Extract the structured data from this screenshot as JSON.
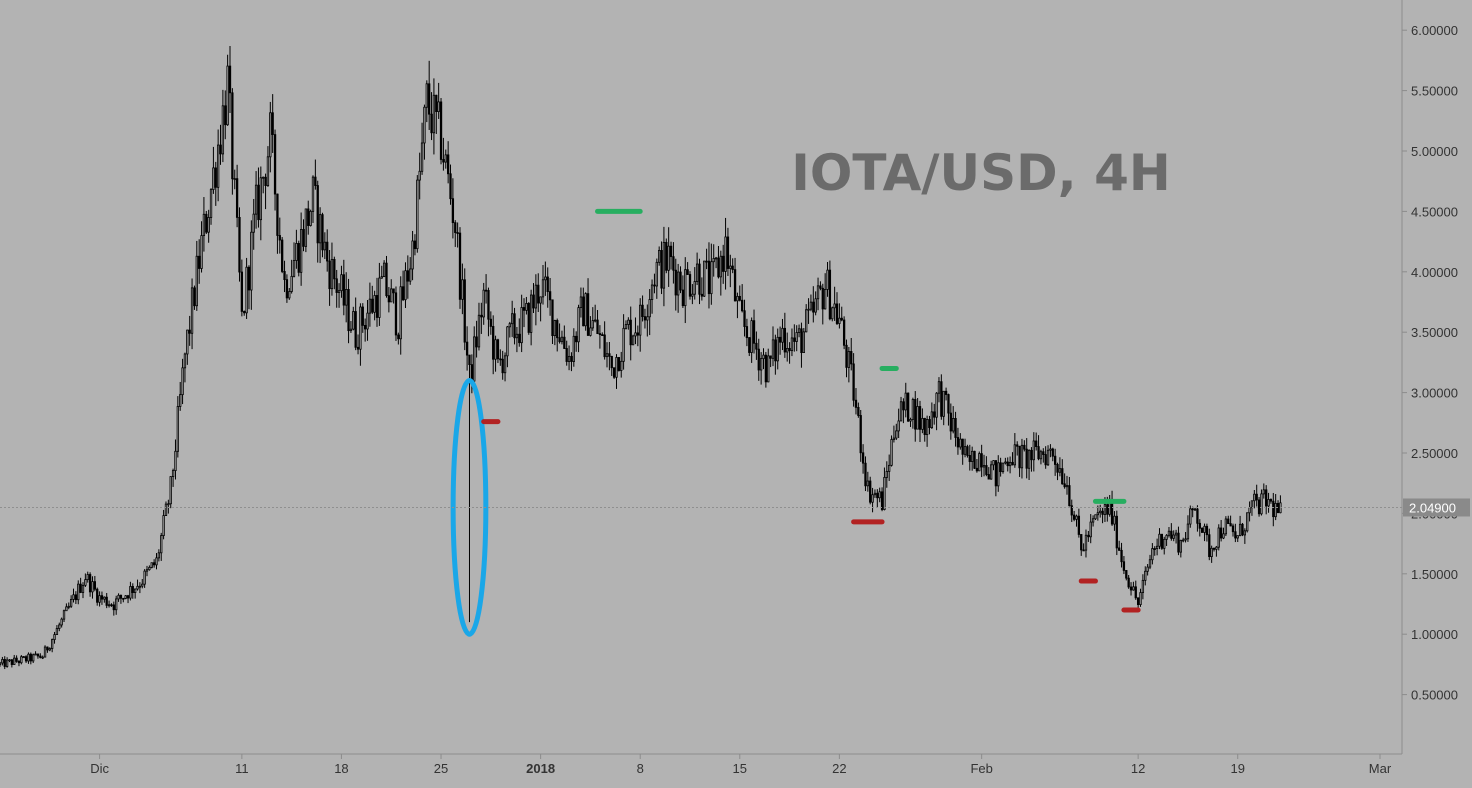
{
  "chart_data": {
    "type": "candlestick",
    "title": "IOTA/USD, 4H",
    "y_axis": {
      "ticks": [
        "6.00000",
        "5.50000",
        "5.00000",
        "4.50000",
        "4.00000",
        "3.50000",
        "3.00000",
        "2.50000",
        "2.00000",
        "1.50000",
        "1.00000",
        "0.50000"
      ],
      "tick_values": [
        6.0,
        5.5,
        5.0,
        4.5,
        4.0,
        3.5,
        3.0,
        2.5,
        2.0,
        1.5,
        1.0,
        0.5
      ],
      "range": [
        0.0,
        6.25
      ],
      "side": "right"
    },
    "x_axis": {
      "ticks": [
        {
          "label": "Dic",
          "date": "2017-12-01",
          "bold": false
        },
        {
          "label": "11",
          "date": "2017-12-11",
          "bold": false
        },
        {
          "label": "18",
          "date": "2017-12-18",
          "bold": false
        },
        {
          "label": "25",
          "date": "2017-12-25",
          "bold": false
        },
        {
          "label": "2018",
          "date": "2018-01-01",
          "bold": true
        },
        {
          "label": "8",
          "date": "2018-01-08",
          "bold": false
        },
        {
          "label": "15",
          "date": "2018-01-15",
          "bold": false
        },
        {
          "label": "22",
          "date": "2018-01-22",
          "bold": false
        },
        {
          "label": "Feb",
          "date": "2018-02-01",
          "bold": false
        },
        {
          "label": "12",
          "date": "2018-02-12",
          "bold": false
        },
        {
          "label": "19",
          "date": "2018-02-19",
          "bold": false
        },
        {
          "label": "Mar",
          "date": "2018-03-01",
          "bold": false
        }
      ],
      "range": [
        "2017-11-24",
        "2018-03-01"
      ]
    },
    "last_price": {
      "label": "2.04900",
      "value": 2.049
    },
    "price_path": [
      [
        "2017-11-24",
        0.75
      ],
      [
        "2017-11-27",
        0.82
      ],
      [
        "2017-11-29",
        1.25
      ],
      [
        "2017-11-30",
        1.48
      ],
      [
        "2017-12-01",
        1.3
      ],
      [
        "2017-12-02",
        1.25
      ],
      [
        "2017-12-04",
        1.45
      ],
      [
        "2017-12-05",
        1.6
      ],
      [
        "2017-12-06",
        2.2
      ],
      [
        "2017-12-07",
        3.3
      ],
      [
        "2017-12-08",
        4.1
      ],
      [
        "2017-12-09",
        4.8
      ],
      [
        "2017-12-10",
        5.55
      ],
      [
        "2017-12-11",
        3.6
      ],
      [
        "2017-12-12",
        4.5
      ],
      [
        "2017-12-13",
        5.1
      ],
      [
        "2017-12-14",
        3.9
      ],
      [
        "2017-12-15",
        4.2
      ],
      [
        "2017-12-16",
        4.6
      ],
      [
        "2017-12-17",
        4.1
      ],
      [
        "2017-12-18",
        3.8
      ],
      [
        "2017-12-19",
        3.5
      ],
      [
        "2017-12-20",
        3.7
      ],
      [
        "2017-12-21",
        3.9
      ],
      [
        "2017-12-22",
        3.6
      ],
      [
        "2017-12-23",
        4.2
      ],
      [
        "2017-12-24",
        5.4
      ],
      [
        "2017-12-25",
        5.1
      ],
      [
        "2017-12-26",
        4.4
      ],
      [
        "2017-12-27",
        3.1
      ],
      [
        "2017-12-28",
        3.8
      ],
      [
        "2017-12-29",
        3.2
      ],
      [
        "2017-12-30",
        3.5
      ],
      [
        "2017-12-31",
        3.6
      ],
      [
        "2018-01-01",
        3.9
      ],
      [
        "2018-01-02",
        3.6
      ],
      [
        "2018-01-03",
        3.3
      ],
      [
        "2018-01-04",
        3.7
      ],
      [
        "2018-01-05",
        3.5
      ],
      [
        "2018-01-06",
        3.2
      ],
      [
        "2018-01-07",
        3.5
      ],
      [
        "2018-01-08",
        3.6
      ],
      [
        "2018-01-09",
        4.0
      ],
      [
        "2018-01-10",
        4.1
      ],
      [
        "2018-01-11",
        3.9
      ],
      [
        "2018-01-12",
        4.0
      ],
      [
        "2018-01-13",
        3.9
      ],
      [
        "2018-01-14",
        4.2
      ],
      [
        "2018-01-15",
        3.6
      ],
      [
        "2018-01-16",
        3.4
      ],
      [
        "2018-01-17",
        3.2
      ],
      [
        "2018-01-18",
        3.5
      ],
      [
        "2018-01-19",
        3.4
      ],
      [
        "2018-01-20",
        3.6
      ],
      [
        "2018-01-21",
        3.9
      ],
      [
        "2018-01-22",
        3.6
      ],
      [
        "2018-01-23",
        3.0
      ],
      [
        "2018-01-24",
        2.2
      ],
      [
        "2018-01-25",
        2.1
      ],
      [
        "2018-01-26",
        2.8
      ],
      [
        "2018-01-27",
        2.9
      ],
      [
        "2018-01-28",
        2.7
      ],
      [
        "2018-01-29",
        3.0
      ],
      [
        "2018-01-30",
        2.7
      ],
      [
        "2018-01-31",
        2.4
      ],
      [
        "2018-02-01",
        2.5
      ],
      [
        "2018-02-02",
        2.3
      ],
      [
        "2018-02-03",
        2.5
      ],
      [
        "2018-02-04",
        2.45
      ],
      [
        "2018-02-05",
        2.5
      ],
      [
        "2018-02-06",
        2.5
      ],
      [
        "2018-02-07",
        2.25
      ],
      [
        "2018-02-08",
        1.7
      ],
      [
        "2018-02-09",
        1.95
      ],
      [
        "2018-02-10",
        2.05
      ],
      [
        "2018-02-11",
        1.55
      ],
      [
        "2018-02-12",
        1.25
      ],
      [
        "2018-02-13",
        1.7
      ],
      [
        "2018-02-14",
        1.85
      ],
      [
        "2018-02-15",
        1.75
      ],
      [
        "2018-02-16",
        2.05
      ],
      [
        "2018-02-17",
        1.7
      ],
      [
        "2018-02-18",
        1.9
      ],
      [
        "2018-02-19",
        1.8
      ],
      [
        "2018-02-20",
        2.05
      ],
      [
        "2018-02-21",
        2.1
      ],
      [
        "2018-02-22",
        2.0
      ]
    ],
    "spike": {
      "date": "2017-12-27",
      "low": 1.1,
      "high": 3.1
    },
    "annotations": [
      {
        "type": "ellipse",
        "color": "#1aa7e8",
        "center_date": "2017-12-27",
        "center_value": 2.05,
        "date_span": 2.3,
        "value_span": 2.1
      },
      {
        "type": "resistance",
        "color": "#27ae60",
        "date_from": "2018-01-05",
        "date_to": "2018-01-08",
        "value": 4.5
      },
      {
        "type": "resistance",
        "color": "#27ae60",
        "date_from": "2018-01-25",
        "date_to": "2018-01-26",
        "value": 3.2
      },
      {
        "type": "resistance",
        "color": "#27ae60",
        "date_from": "2018-02-09",
        "date_to": "2018-02-11",
        "value": 2.1
      },
      {
        "type": "support",
        "color": "#b22222",
        "date_from": "2017-12-28",
        "date_to": "2017-12-29",
        "value": 2.76
      },
      {
        "type": "support",
        "color": "#b22222",
        "date_from": "2018-01-23",
        "date_to": "2018-01-25",
        "value": 1.93
      },
      {
        "type": "support",
        "color": "#b22222",
        "date_from": "2018-02-08",
        "date_to": "2018-02-09",
        "value": 1.44
      },
      {
        "type": "support",
        "color": "#b22222",
        "date_from": "2018-02-11",
        "date_to": "2018-02-12",
        "value": 1.2
      }
    ],
    "grid": false,
    "colors": {
      "background": "#b3b3b3",
      "candles": "#000000",
      "axis_text": "#333333",
      "title": "#6b6b6b",
      "price_label_bg": "#8a8a8a"
    }
  }
}
